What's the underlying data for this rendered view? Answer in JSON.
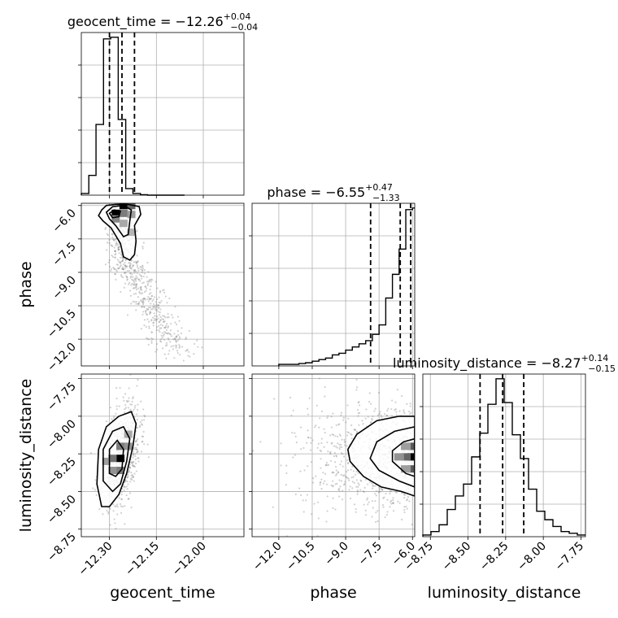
{
  "chart_data": {
    "type": "corner",
    "parameters": [
      {
        "name": "geocent_time",
        "title": "geocent_time = −12.26",
        "title_sup": "+0.04",
        "title_sub": "−0.04",
        "range": [
          -12.39,
          -11.87
        ],
        "ticks": [
          -12.3,
          -12.15,
          -12.0
        ],
        "tick_labels": [
          "−12.30",
          "−12.15",
          "−12.00"
        ],
        "quantiles": [
          -12.3,
          -12.26,
          -12.22
        ],
        "hist_edges": [
          -12.39,
          -12.366,
          -12.343,
          -12.319,
          -12.296,
          -12.272,
          -12.248,
          -12.225,
          -12.201,
          -12.178,
          -12.154,
          -12.131,
          -12.107,
          -12.083,
          -12.06
        ],
        "hist_counts": [
          1,
          12,
          43,
          95,
          96,
          46,
          4,
          1,
          0.3,
          0,
          0,
          0,
          0,
          0
        ]
      },
      {
        "name": "phase",
        "title": "phase = −6.55",
        "title_sup": "+0.47",
        "title_sub": "−1.33",
        "range": [
          -13.2,
          -5.9
        ],
        "ticks": [
          -12.0,
          -10.5,
          -9.0,
          -7.5,
          -6.0
        ],
        "tick_labels": [
          "−12.0",
          "−10.5",
          "−9.0",
          "−7.5",
          "−6.0"
        ],
        "quantiles": [
          -7.88,
          -6.55,
          -6.08
        ],
        "hist_edges": [
          -12.0,
          -11.7,
          -11.4,
          -11.1,
          -10.8,
          -10.5,
          -10.2,
          -9.9,
          -9.6,
          -9.3,
          -9.0,
          -8.7,
          -8.4,
          -8.1,
          -7.8,
          -7.5,
          -7.2,
          -6.9,
          -6.6,
          -6.3,
          -6.0,
          -5.9
        ],
        "hist_counts": [
          1,
          1,
          1,
          1.5,
          2,
          3,
          4,
          5,
          7,
          8,
          10,
          12,
          14,
          16,
          20,
          26,
          43,
          58,
          74,
          99,
          100
        ],
        "hist_max": 100
      },
      {
        "name": "luminosity_distance",
        "title": "luminosity_distance = −8.27",
        "title_sup": "+0.14",
        "title_sub": "−0.15",
        "range": [
          -8.8,
          -7.72
        ],
        "ticks": [
          -8.75,
          -8.5,
          -8.25,
          -8.0,
          -7.75
        ],
        "tick_labels": [
          "−8.75",
          "−8.50",
          "−8.25",
          "−8.00",
          "−7.75"
        ],
        "quantiles": [
          -8.42,
          -8.27,
          -8.13
        ],
        "hist_edges": [
          -8.8,
          -8.746,
          -8.692,
          -8.638,
          -8.584,
          -8.53,
          -8.476,
          -8.422,
          -8.368,
          -8.314,
          -8.26,
          -8.206,
          -8.152,
          -8.098,
          -8.044,
          -7.99,
          -7.936,
          -7.882,
          -7.828,
          -7.774,
          -7.72
        ],
        "hist_counts": [
          1,
          3,
          7,
          16,
          24,
          31,
          47,
          61,
          78,
          93,
          79,
          60,
          46,
          28,
          15,
          10,
          6,
          3,
          2,
          1
        ]
      }
    ],
    "pairs": [
      {
        "x": "geocent_time",
        "y": "phase",
        "peak": [
          -12.265,
          -6.1
        ],
        "contours": [
          [
            [
              -12.325,
              -6.2
            ],
            [
              -12.31,
              -6.0
            ],
            [
              -12.28,
              -5.95
            ],
            [
              -12.24,
              -5.95
            ],
            [
              -12.205,
              -6.05
            ],
            [
              -12.2,
              -6.4
            ],
            [
              -12.22,
              -6.9
            ],
            [
              -12.215,
              -7.6
            ],
            [
              -12.22,
              -8.2
            ],
            [
              -12.235,
              -8.45
            ],
            [
              -12.255,
              -8.3
            ],
            [
              -12.265,
              -7.7
            ],
            [
              -12.295,
              -7.0
            ],
            [
              -12.32,
              -6.7
            ],
            [
              -12.335,
              -6.45
            ]
          ],
          [
            [
              -12.31,
              -6.3
            ],
            [
              -12.29,
              -6.05
            ],
            [
              -12.255,
              -6.0
            ],
            [
              -12.23,
              -6.2
            ],
            [
              -12.235,
              -6.7
            ],
            [
              -12.24,
              -7.3
            ],
            [
              -12.255,
              -7.4
            ],
            [
              -12.28,
              -6.9
            ],
            [
              -12.3,
              -6.6
            ]
          ],
          [
            [
              -12.3,
              -6.35
            ],
            [
              -12.285,
              -6.2
            ],
            [
              -12.265,
              -6.25
            ],
            [
              -12.27,
              -6.5
            ],
            [
              -12.29,
              -6.55
            ]
          ],
          [
            [
              -12.285,
              -6.32
            ],
            [
              -12.275,
              -6.25
            ],
            [
              -12.268,
              -6.33
            ],
            [
              -12.278,
              -6.42
            ]
          ]
        ],
        "core_cells": [
          [
            -12.28,
            -6.35,
            1.0
          ],
          [
            -12.255,
            -6.0,
            1.0
          ],
          [
            -12.255,
            -6.35,
            0.45
          ],
          [
            -12.23,
            -6.0,
            0.55
          ],
          [
            -12.28,
            -6.6,
            0.4
          ],
          [
            -12.23,
            -6.4,
            0.3
          ],
          [
            -12.255,
            -6.8,
            0.25
          ],
          [
            -12.23,
            -7.2,
            0.2
          ]
        ]
      },
      {
        "x": "geocent_time",
        "y": "luminosity_distance",
        "peak": [
          -12.265,
          -8.28
        ],
        "contours": [
          [
            [
              -12.34,
              -8.45
            ],
            [
              -12.335,
              -8.22
            ],
            [
              -12.31,
              -8.07
            ],
            [
              -12.27,
              -8.0
            ],
            [
              -12.23,
              -7.97
            ],
            [
              -12.215,
              -8.05
            ],
            [
              -12.225,
              -8.2
            ],
            [
              -12.245,
              -8.38
            ],
            [
              -12.27,
              -8.52
            ],
            [
              -12.3,
              -8.6
            ],
            [
              -12.325,
              -8.6
            ]
          ],
          [
            [
              -12.32,
              -8.43
            ],
            [
              -12.32,
              -8.22
            ],
            [
              -12.29,
              -8.1
            ],
            [
              -12.255,
              -8.07
            ],
            [
              -12.235,
              -8.15
            ],
            [
              -12.245,
              -8.3
            ],
            [
              -12.265,
              -8.45
            ],
            [
              -12.29,
              -8.5
            ]
          ],
          [
            [
              -12.3,
              -8.38
            ],
            [
              -12.3,
              -8.22
            ],
            [
              -12.275,
              -8.16
            ],
            [
              -12.255,
              -8.22
            ],
            [
              -12.26,
              -8.35
            ],
            [
              -12.28,
              -8.4
            ]
          ]
        ],
        "core_cells": [
          [
            -12.265,
            -8.28,
            1.0
          ],
          [
            -12.29,
            -8.28,
            0.5
          ],
          [
            -12.265,
            -8.2,
            0.45
          ],
          [
            -12.265,
            -8.36,
            0.45
          ],
          [
            -12.29,
            -8.36,
            0.35
          ],
          [
            -12.24,
            -8.2,
            0.35
          ],
          [
            -12.24,
            -8.12,
            0.25
          ],
          [
            -12.31,
            -8.3,
            0.3
          ]
        ]
      },
      {
        "x": "phase",
        "y": "luminosity_distance",
        "peak": [
          -5.95,
          -8.27
        ],
        "contours": [
          [
            [
              -5.9,
              -8.53
            ],
            [
              -6.5,
              -8.5
            ],
            [
              -7.4,
              -8.47
            ],
            [
              -8.2,
              -8.4
            ],
            [
              -8.8,
              -8.3
            ],
            [
              -8.9,
              -8.22
            ],
            [
              -8.5,
              -8.12
            ],
            [
              -7.6,
              -8.03
            ],
            [
              -6.6,
              -8.0
            ],
            [
              -5.9,
              -8.0
            ]
          ],
          [
            [
              -5.9,
              -8.47
            ],
            [
              -6.6,
              -8.43
            ],
            [
              -7.5,
              -8.36
            ],
            [
              -7.9,
              -8.28
            ],
            [
              -7.6,
              -8.17
            ],
            [
              -6.8,
              -8.1
            ],
            [
              -5.9,
              -8.07
            ]
          ],
          [
            [
              -5.9,
              -8.4
            ],
            [
              -6.3,
              -8.38
            ],
            [
              -6.9,
              -8.3
            ],
            [
              -6.9,
              -8.23
            ],
            [
              -6.4,
              -8.17
            ],
            [
              -5.9,
              -8.15
            ]
          ]
        ],
        "core_cells": [
          [
            -6.0,
            -8.27,
            1.0
          ],
          [
            -6.3,
            -8.27,
            0.55
          ],
          [
            -6.0,
            -8.2,
            0.6
          ],
          [
            -6.0,
            -8.35,
            0.6
          ],
          [
            -6.6,
            -8.27,
            0.35
          ],
          [
            -6.3,
            -8.2,
            0.3
          ],
          [
            -6.3,
            -8.35,
            0.3
          ]
        ]
      }
    ],
    "scatter_seeds": [
      11,
      23,
      37
    ]
  }
}
